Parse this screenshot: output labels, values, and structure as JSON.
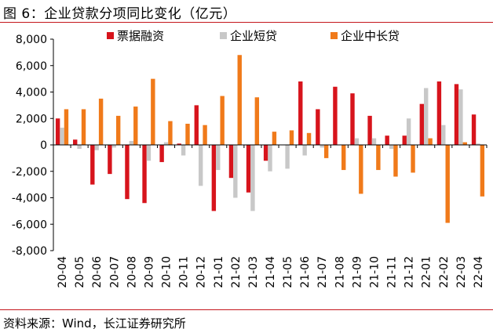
{
  "title": "图 6：企业贷款分项同比变化（亿元）",
  "source": "资料来源：Wind，长江证券研究所",
  "chart_data": {
    "type": "bar",
    "title": "图 6：企业贷款分项同比变化（亿元）",
    "xlabel": "",
    "ylabel": "",
    "ylim": [
      -8000,
      8000
    ],
    "yticks": [
      -8000,
      -6000,
      -4000,
      -2000,
      0,
      2000,
      4000,
      6000,
      8000
    ],
    "ytick_labels": [
      "-8,000",
      "-6,000",
      "-4,000",
      "-2,000",
      "0",
      "2,000",
      "4,000",
      "6,000",
      "8,000"
    ],
    "legend_position": "top",
    "categories": [
      "20-04",
      "20-05",
      "20-06",
      "20-07",
      "20-08",
      "20-09",
      "20-10",
      "20-11",
      "20-12",
      "21-01",
      "21-02",
      "21-03",
      "21-04",
      "21-05",
      "21-06",
      "21-07",
      "21-08",
      "21-09",
      "21-10",
      "21-11",
      "21-12",
      "22-01",
      "22-02",
      "22-03",
      "22-04"
    ],
    "series": [
      {
        "name": "票据融资",
        "color": "#d7141c",
        "values": [
          2000,
          400,
          -3000,
          -2200,
          -4100,
          -4400,
          -1300,
          100,
          3000,
          -5000,
          -2500,
          -3600,
          -1200,
          0,
          4800,
          2700,
          4400,
          3900,
          2200,
          700,
          700,
          3100,
          4800,
          4600,
          2300
        ]
      },
      {
        "name": "企业短贷",
        "color": "#c8c8c8",
        "values": [
          1300,
          -300,
          -400,
          -200,
          300,
          -1200,
          200,
          -800,
          -3100,
          -1900,
          -4000,
          -5000,
          -2000,
          -1800,
          -800,
          -200,
          0,
          500,
          500,
          -300,
          2000,
          4300,
          1500,
          4200,
          100
        ]
      },
      {
        "name": "企业中长贷",
        "color": "#f07a1a",
        "values": [
          2700,
          2700,
          3500,
          2200,
          2900,
          5000,
          1800,
          1600,
          1500,
          3700,
          6800,
          3600,
          1000,
          1100,
          900,
          -1000,
          -1900,
          -3700,
          -1900,
          -2400,
          -2100,
          500,
          -5900,
          200,
          -3900
        ]
      }
    ]
  }
}
